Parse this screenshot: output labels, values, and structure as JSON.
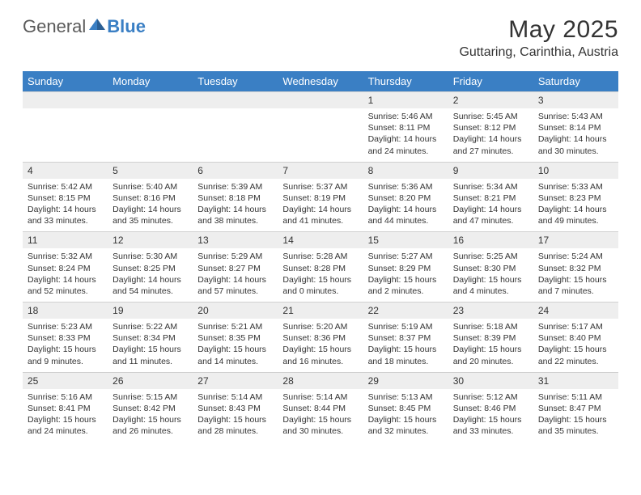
{
  "brand": {
    "part1": "General",
    "part2": "Blue"
  },
  "title": "May 2025",
  "location": "Guttaring, Carinthia, Austria",
  "colors": {
    "header_bg": "#3a7fc4",
    "header_text": "#ffffff",
    "daynum_bg": "#eeeeee",
    "text": "#333333",
    "logo_gray": "#5a5a5a",
    "logo_blue": "#3a7fc4",
    "background": "#ffffff"
  },
  "days_of_week": [
    "Sunday",
    "Monday",
    "Tuesday",
    "Wednesday",
    "Thursday",
    "Friday",
    "Saturday"
  ],
  "weeks": [
    [
      null,
      null,
      null,
      null,
      {
        "n": "1",
        "sr": "5:46 AM",
        "ss": "8:11 PM",
        "dl": "14 hours and 24 minutes."
      },
      {
        "n": "2",
        "sr": "5:45 AM",
        "ss": "8:12 PM",
        "dl": "14 hours and 27 minutes."
      },
      {
        "n": "3",
        "sr": "5:43 AM",
        "ss": "8:14 PM",
        "dl": "14 hours and 30 minutes."
      }
    ],
    [
      {
        "n": "4",
        "sr": "5:42 AM",
        "ss": "8:15 PM",
        "dl": "14 hours and 33 minutes."
      },
      {
        "n": "5",
        "sr": "5:40 AM",
        "ss": "8:16 PM",
        "dl": "14 hours and 35 minutes."
      },
      {
        "n": "6",
        "sr": "5:39 AM",
        "ss": "8:18 PM",
        "dl": "14 hours and 38 minutes."
      },
      {
        "n": "7",
        "sr": "5:37 AM",
        "ss": "8:19 PM",
        "dl": "14 hours and 41 minutes."
      },
      {
        "n": "8",
        "sr": "5:36 AM",
        "ss": "8:20 PM",
        "dl": "14 hours and 44 minutes."
      },
      {
        "n": "9",
        "sr": "5:34 AM",
        "ss": "8:21 PM",
        "dl": "14 hours and 47 minutes."
      },
      {
        "n": "10",
        "sr": "5:33 AM",
        "ss": "8:23 PM",
        "dl": "14 hours and 49 minutes."
      }
    ],
    [
      {
        "n": "11",
        "sr": "5:32 AM",
        "ss": "8:24 PM",
        "dl": "14 hours and 52 minutes."
      },
      {
        "n": "12",
        "sr": "5:30 AM",
        "ss": "8:25 PM",
        "dl": "14 hours and 54 minutes."
      },
      {
        "n": "13",
        "sr": "5:29 AM",
        "ss": "8:27 PM",
        "dl": "14 hours and 57 minutes."
      },
      {
        "n": "14",
        "sr": "5:28 AM",
        "ss": "8:28 PM",
        "dl": "15 hours and 0 minutes."
      },
      {
        "n": "15",
        "sr": "5:27 AM",
        "ss": "8:29 PM",
        "dl": "15 hours and 2 minutes."
      },
      {
        "n": "16",
        "sr": "5:25 AM",
        "ss": "8:30 PM",
        "dl": "15 hours and 4 minutes."
      },
      {
        "n": "17",
        "sr": "5:24 AM",
        "ss": "8:32 PM",
        "dl": "15 hours and 7 minutes."
      }
    ],
    [
      {
        "n": "18",
        "sr": "5:23 AM",
        "ss": "8:33 PM",
        "dl": "15 hours and 9 minutes."
      },
      {
        "n": "19",
        "sr": "5:22 AM",
        "ss": "8:34 PM",
        "dl": "15 hours and 11 minutes."
      },
      {
        "n": "20",
        "sr": "5:21 AM",
        "ss": "8:35 PM",
        "dl": "15 hours and 14 minutes."
      },
      {
        "n": "21",
        "sr": "5:20 AM",
        "ss": "8:36 PM",
        "dl": "15 hours and 16 minutes."
      },
      {
        "n": "22",
        "sr": "5:19 AM",
        "ss": "8:37 PM",
        "dl": "15 hours and 18 minutes."
      },
      {
        "n": "23",
        "sr": "5:18 AM",
        "ss": "8:39 PM",
        "dl": "15 hours and 20 minutes."
      },
      {
        "n": "24",
        "sr": "5:17 AM",
        "ss": "8:40 PM",
        "dl": "15 hours and 22 minutes."
      }
    ],
    [
      {
        "n": "25",
        "sr": "5:16 AM",
        "ss": "8:41 PM",
        "dl": "15 hours and 24 minutes."
      },
      {
        "n": "26",
        "sr": "5:15 AM",
        "ss": "8:42 PM",
        "dl": "15 hours and 26 minutes."
      },
      {
        "n": "27",
        "sr": "5:14 AM",
        "ss": "8:43 PM",
        "dl": "15 hours and 28 minutes."
      },
      {
        "n": "28",
        "sr": "5:14 AM",
        "ss": "8:44 PM",
        "dl": "15 hours and 30 minutes."
      },
      {
        "n": "29",
        "sr": "5:13 AM",
        "ss": "8:45 PM",
        "dl": "15 hours and 32 minutes."
      },
      {
        "n": "30",
        "sr": "5:12 AM",
        "ss": "8:46 PM",
        "dl": "15 hours and 33 minutes."
      },
      {
        "n": "31",
        "sr": "5:11 AM",
        "ss": "8:47 PM",
        "dl": "15 hours and 35 minutes."
      }
    ]
  ],
  "labels": {
    "sunrise": "Sunrise:",
    "sunset": "Sunset:",
    "daylight": "Daylight:"
  }
}
